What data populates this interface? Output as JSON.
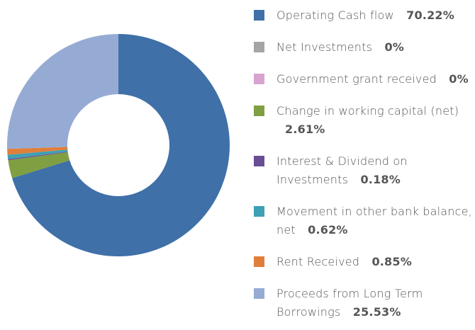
{
  "chart_data": {
    "type": "donut",
    "categories": [
      "Operating Cash flow",
      "Net Investments",
      "Government grant received",
      "Change in working capital (net)",
      "Interest & Dividend on Investments",
      "Movement in other bank balance, net",
      "Rent Received",
      "Proceeds from Long Term Borrowings"
    ],
    "values": [
      70.22,
      0,
      0,
      2.61,
      0.18,
      0.62,
      0.85,
      25.53
    ],
    "value_labels": [
      "70.22%",
      "0%",
      "0%",
      "2.61%",
      "0.18%",
      "0.62%",
      "0.85%",
      "25.53%"
    ],
    "colors": [
      "#3f70a8",
      "#a5a5a5",
      "#d9a3d0",
      "#7f9f42",
      "#6a4e94",
      "#3ea0b5",
      "#e07f3a",
      "#96abd4"
    ]
  }
}
